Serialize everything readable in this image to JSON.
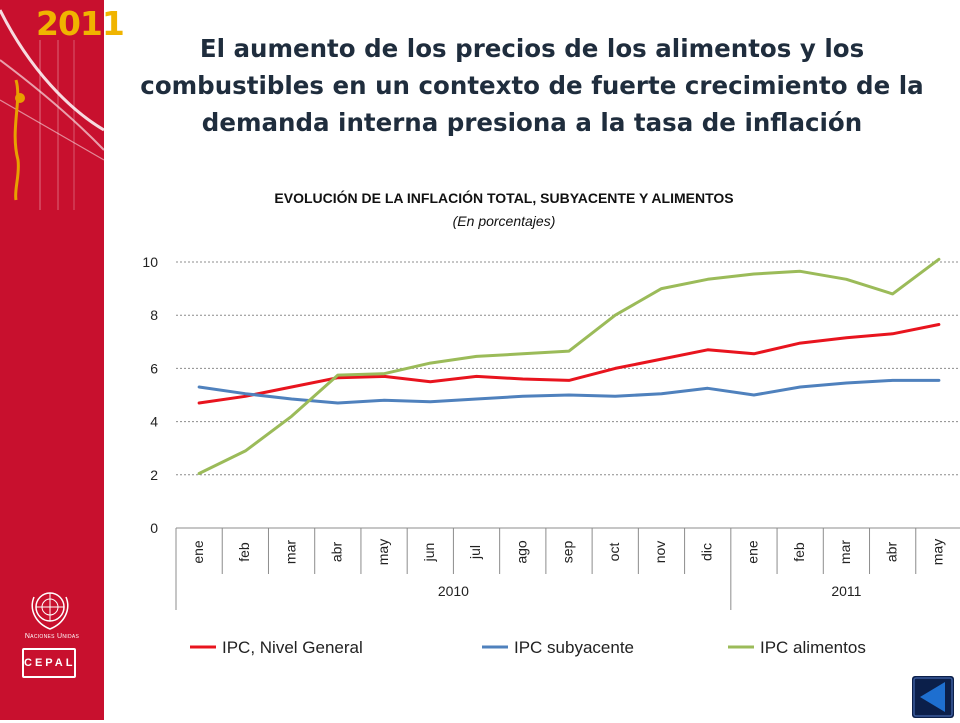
{
  "slide": {
    "year_badge": "2011",
    "headline": "El aumento de los precios de los alimentos  y los combustibles en un contexto de fuerte crecimiento de la demanda interna presiona a la tasa de inflación",
    "un_logo_text": "Naciones Unidas",
    "cepal_logo_text": "CEPAL",
    "nav": {
      "back_icon": "back-arrow-icon"
    },
    "colors": {
      "sidebar": "#c8102e",
      "year_badge": "#f0b400",
      "nav_button": "#0b1f4a",
      "nav_arrow": "#1e6fd0"
    }
  },
  "chart_data": {
    "type": "line",
    "title": "EVOLUCIÓN DE LA INFLACIÓN TOTAL, SUBYACENTE Y ALIMENTOS",
    "subtitle": "(En porcentajes)",
    "xlabel": "",
    "ylabel": "",
    "categories": [
      "ene",
      "feb",
      "mar",
      "abr",
      "may",
      "jun",
      "jul",
      "ago",
      "sep",
      "oct",
      "nov",
      "dic",
      "ene",
      "feb",
      "mar",
      "abr",
      "may"
    ],
    "year_groups": [
      {
        "label": "2010",
        "count": 12
      },
      {
        "label": "2011",
        "count": 5
      }
    ],
    "ylim": [
      0,
      10
    ],
    "yticks": [
      0,
      2,
      4,
      6,
      8,
      10
    ],
    "grid": true,
    "legend_position": "bottom",
    "series": [
      {
        "name": "IPC, Nivel General",
        "color": "#e8141e",
        "values": [
          4.7,
          4.95,
          5.3,
          5.65,
          5.7,
          5.5,
          5.7,
          5.6,
          5.55,
          6.0,
          6.35,
          6.7,
          6.55,
          6.95,
          7.15,
          7.3,
          7.65
        ]
      },
      {
        "name": "IPC subyacente",
        "color": "#4f81bd",
        "values": [
          5.3,
          5.05,
          4.85,
          4.7,
          4.8,
          4.75,
          4.85,
          4.95,
          5.0,
          4.95,
          5.05,
          5.25,
          5.0,
          5.3,
          5.45,
          5.55,
          5.55
        ]
      },
      {
        "name": "IPC alimentos",
        "color": "#9bbb59",
        "values": [
          2.05,
          2.9,
          4.2,
          5.75,
          5.8,
          6.2,
          6.45,
          6.55,
          6.65,
          8.0,
          9.0,
          9.35,
          9.55,
          9.65,
          9.35,
          8.8,
          10.1
        ]
      }
    ]
  }
}
